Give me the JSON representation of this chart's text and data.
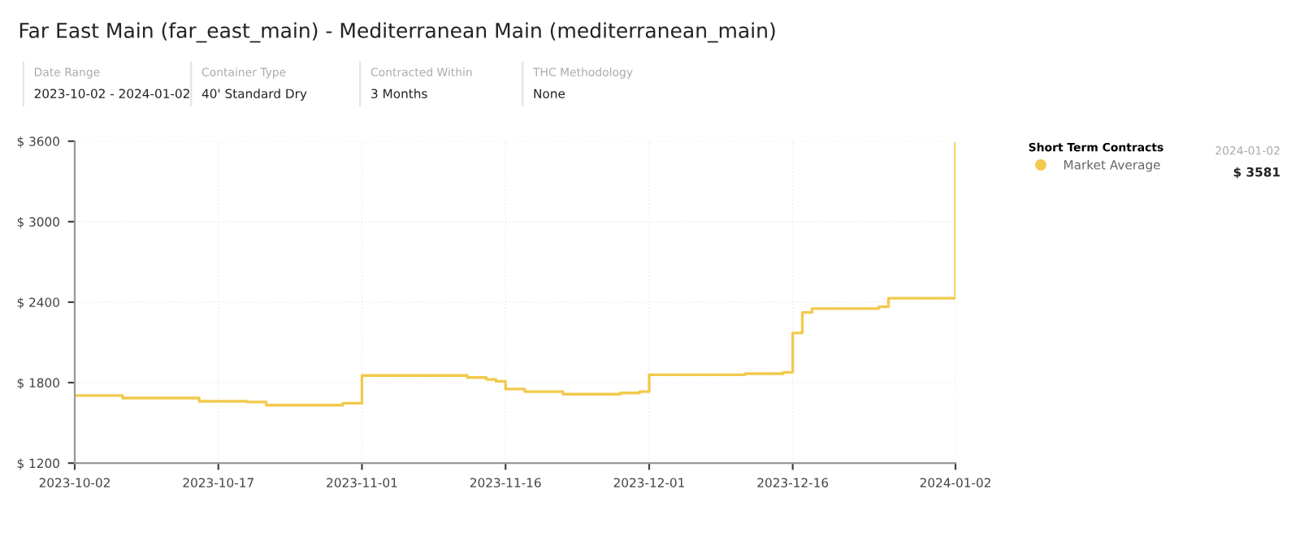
{
  "chart_data": {
    "type": "step",
    "title": "Far East Main (far_east_main) - Mediterranean Main (mediterranean_main)",
    "annotations": [
      "Date Range",
      "2023-10-02 - 2024-01-02",
      "Container Type",
      "40' Standard Dry",
      "Contracted Within",
      "3 Months",
      "THC Methodology",
      "None",
      "2024-01-02",
      "$ 3581"
    ],
    "legend_title": "Short Term Contracts",
    "x": [
      "2023-10-02",
      "2023-10-07",
      "2023-10-14",
      "2023-10-15",
      "2023-10-20",
      "2023-10-22",
      "2023-10-29",
      "2023-10-30",
      "2023-11-01",
      "2023-11-12",
      "2023-11-14",
      "2023-11-15",
      "2023-11-16",
      "2023-11-18",
      "2023-11-22",
      "2023-11-28",
      "2023-11-30",
      "2023-12-01",
      "2023-12-11",
      "2023-12-15",
      "2023-12-16",
      "2023-12-17",
      "2023-12-18",
      "2023-12-25",
      "2023-12-26",
      "2024-01-01",
      "2024-01-02"
    ],
    "series": [
      {
        "name": "Market Average",
        "color": "#f2c94c",
        "values": [
          1704,
          1685,
          1685,
          1661,
          1656,
          1632,
          1632,
          1646,
          1853,
          1838,
          1824,
          1810,
          1752,
          1733,
          1714,
          1723,
          1733,
          1858,
          1867,
          1877,
          2170,
          2323,
          2352,
          2366,
          2429,
          2429,
          3581
        ]
      }
    ],
    "xlim": [
      "2023-10-02",
      "2024-01-02"
    ],
    "xticks": [
      "2023-10-02",
      "2023-10-17",
      "2023-11-01",
      "2023-11-16",
      "2023-12-01",
      "2023-12-16",
      "2024-01-02"
    ],
    "ylim": [
      1200,
      3600
    ],
    "yticks": [
      {
        "value": 1200,
        "label": "$ 1200"
      },
      {
        "value": 1800,
        "label": "$ 1800"
      },
      {
        "value": 2400,
        "label": "$ 2400"
      },
      {
        "value": 3000,
        "label": "$ 3000"
      },
      {
        "value": 3600,
        "label": "$ 3600"
      }
    ],
    "grid": true,
    "legend": "right"
  }
}
